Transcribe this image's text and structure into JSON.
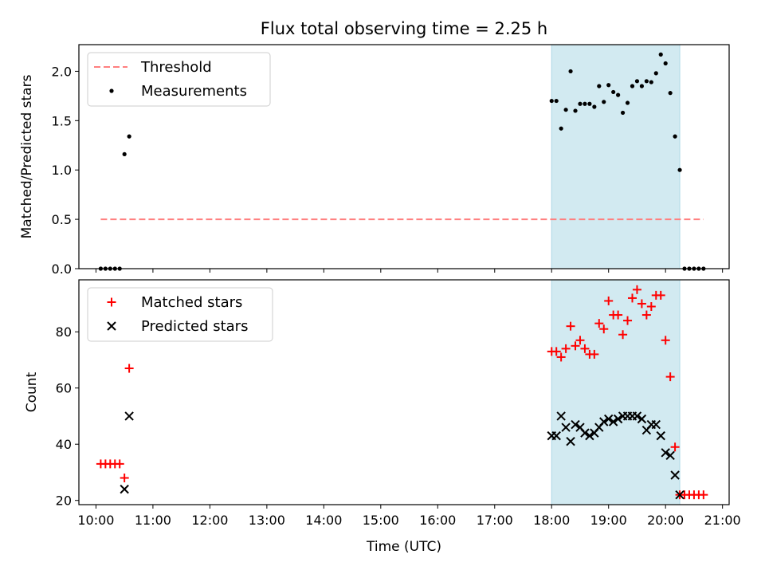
{
  "chart_data": [
    {
      "type": "scatter",
      "panel": "top",
      "title": "Flux total observing time = 2.25 h",
      "ylabel": "Matched/Predicted stars",
      "xlabel": "",
      "ylim": [
        0,
        2.27
      ],
      "y_ticks": [
        0.0,
        0.5,
        1.0,
        1.5,
        2.0
      ],
      "y_tick_labels": [
        "0.0",
        "0.5",
        "1.0",
        "1.5",
        "2.0"
      ],
      "shaded_interval": [
        "18:00",
        "20:15"
      ],
      "shaded_color": "#add8e6",
      "legend_position": "upper left",
      "series": [
        {
          "name": "Threshold",
          "kind": "dashed-line",
          "color": "#ff7f7f",
          "x": [
            "10:05",
            "20:40"
          ],
          "y": [
            0.5,
            0.5
          ]
        },
        {
          "name": "Measurements",
          "kind": "dot",
          "color": "#000000",
          "x": [
            "10:05",
            "10:10",
            "10:15",
            "10:20",
            "10:25",
            "10:30",
            "10:35",
            "18:00",
            "18:05",
            "18:10",
            "18:15",
            "18:20",
            "18:25",
            "18:30",
            "18:35",
            "18:40",
            "18:45",
            "18:50",
            "18:55",
            "19:00",
            "19:05",
            "19:10",
            "19:15",
            "19:20",
            "19:25",
            "19:30",
            "19:35",
            "19:40",
            "19:45",
            "19:50",
            "19:55",
            "20:00",
            "20:05",
            "20:10",
            "20:15",
            "20:20",
            "20:25",
            "20:30",
            "20:35",
            "20:40"
          ],
          "y": [
            0,
            0,
            0,
            0,
            0,
            1.16,
            1.34,
            1.7,
            1.7,
            1.42,
            1.61,
            2.0,
            1.6,
            1.67,
            1.67,
            1.67,
            1.64,
            1.85,
            1.69,
            1.86,
            1.79,
            1.76,
            1.58,
            1.68,
            1.85,
            1.9,
            1.85,
            1.9,
            1.89,
            1.98,
            2.17,
            2.08,
            1.78,
            1.34,
            1.0,
            0,
            0,
            0,
            0,
            0
          ]
        }
      ]
    },
    {
      "type": "scatter",
      "panel": "bottom",
      "title": "",
      "ylabel": "Count",
      "xlabel": "Time (UTC)",
      "ylim": [
        18.5,
        98.5
      ],
      "y_ticks": [
        20,
        40,
        60,
        80
      ],
      "y_tick_labels": [
        "20",
        "40",
        "60",
        "80"
      ],
      "x_ticks": [
        "10:00",
        "11:00",
        "12:00",
        "13:00",
        "14:00",
        "15:00",
        "16:00",
        "17:00",
        "18:00",
        "19:00",
        "20:00",
        "21:00"
      ],
      "shaded_interval": [
        "18:00",
        "20:15"
      ],
      "shaded_color": "#add8e6",
      "legend_position": "upper left",
      "series": [
        {
          "name": "Matched stars",
          "kind": "plus",
          "color": "#ff0000",
          "x": [
            "10:05",
            "10:10",
            "10:15",
            "10:20",
            "10:25",
            "10:30",
            "10:35",
            "18:00",
            "18:05",
            "18:10",
            "18:15",
            "18:20",
            "18:25",
            "18:30",
            "18:35",
            "18:40",
            "18:45",
            "18:50",
            "18:55",
            "19:00",
            "19:05",
            "19:10",
            "19:15",
            "19:20",
            "19:25",
            "19:30",
            "19:35",
            "19:40",
            "19:45",
            "19:50",
            "19:55",
            "20:00",
            "20:05",
            "20:10",
            "20:15",
            "20:20",
            "20:25",
            "20:30",
            "20:35",
            "20:40"
          ],
          "y": [
            33,
            33,
            33,
            33,
            33,
            28,
            67,
            73,
            73,
            71,
            74,
            82,
            75,
            77,
            74,
            72,
            72,
            83,
            81,
            91,
            86,
            86,
            79,
            84,
            92,
            95,
            90,
            86,
            89,
            93,
            93,
            77,
            64,
            39,
            22,
            22,
            22,
            22,
            22,
            22
          ]
        },
        {
          "name": "Predicted stars",
          "kind": "x",
          "color": "#000000",
          "x": [
            "10:30",
            "10:35",
            "18:00",
            "18:05",
            "18:10",
            "18:15",
            "18:20",
            "18:25",
            "18:30",
            "18:35",
            "18:40",
            "18:45",
            "18:50",
            "18:55",
            "19:00",
            "19:05",
            "19:10",
            "19:15",
            "19:20",
            "19:25",
            "19:30",
            "19:35",
            "19:40",
            "19:45",
            "19:50",
            "19:55",
            "20:00",
            "20:05",
            "20:10",
            "20:15"
          ],
          "y": [
            24,
            50,
            43,
            43,
            50,
            46,
            41,
            47,
            46,
            44,
            43,
            44,
            46,
            48,
            49,
            48,
            49,
            50,
            50,
            50,
            50,
            49,
            45,
            47,
            47,
            43,
            37,
            36,
            29,
            22
          ]
        }
      ]
    }
  ]
}
